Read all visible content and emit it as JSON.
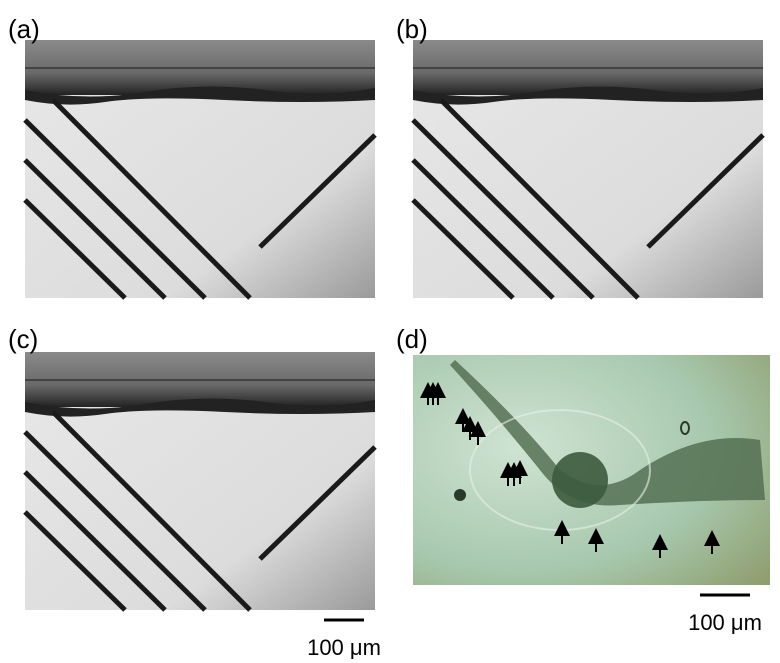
{
  "panels": [
    {
      "label": "(a)"
    },
    {
      "label": "(b)"
    },
    {
      "label": "(c)"
    },
    {
      "label": "(d)"
    }
  ],
  "scale_bars": [
    {
      "label": "100 μm"
    },
    {
      "label": "100 μm"
    }
  ]
}
